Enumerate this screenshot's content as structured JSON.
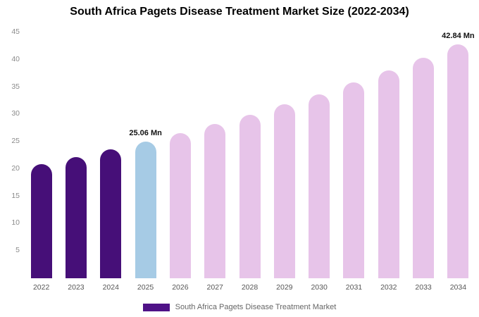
{
  "chart_data": {
    "type": "bar",
    "title": "South Africa Pagets Disease Treatment Market Size (2022-2034)",
    "categories": [
      "2022",
      "2023",
      "2024",
      "2025",
      "2026",
      "2027",
      "2028",
      "2029",
      "2030",
      "2031",
      "2032",
      "2033",
      "2034"
    ],
    "values": [
      20.9,
      22.2,
      23.6,
      25.06,
      26.6,
      28.2,
      29.9,
      31.8,
      33.7,
      35.8,
      38.0,
      40.3,
      42.84
    ],
    "unit": "Mn",
    "xlabel": "",
    "ylabel": "",
    "ylim": [
      0,
      45
    ],
    "yticks": [
      5,
      10,
      15,
      20,
      25,
      30,
      35,
      40,
      45
    ],
    "grid": false,
    "legend_position": "bottom",
    "bar_colors": [
      "#460f78",
      "#460f78",
      "#460f78",
      "#a6cbe5",
      "#e7c4e9",
      "#e7c4e9",
      "#e7c4e9",
      "#e7c4e9",
      "#e7c4e9",
      "#e7c4e9",
      "#e7c4e9",
      "#e7c4e9",
      "#e7c4e9"
    ],
    "annotations": [
      {
        "category": "2025",
        "text": "25.06 Mn"
      },
      {
        "category": "2034",
        "text": "42.84 Mn"
      }
    ]
  },
  "legend": {
    "label": "South Africa Pagets Disease Treatment Market",
    "color": "#4f1287"
  }
}
